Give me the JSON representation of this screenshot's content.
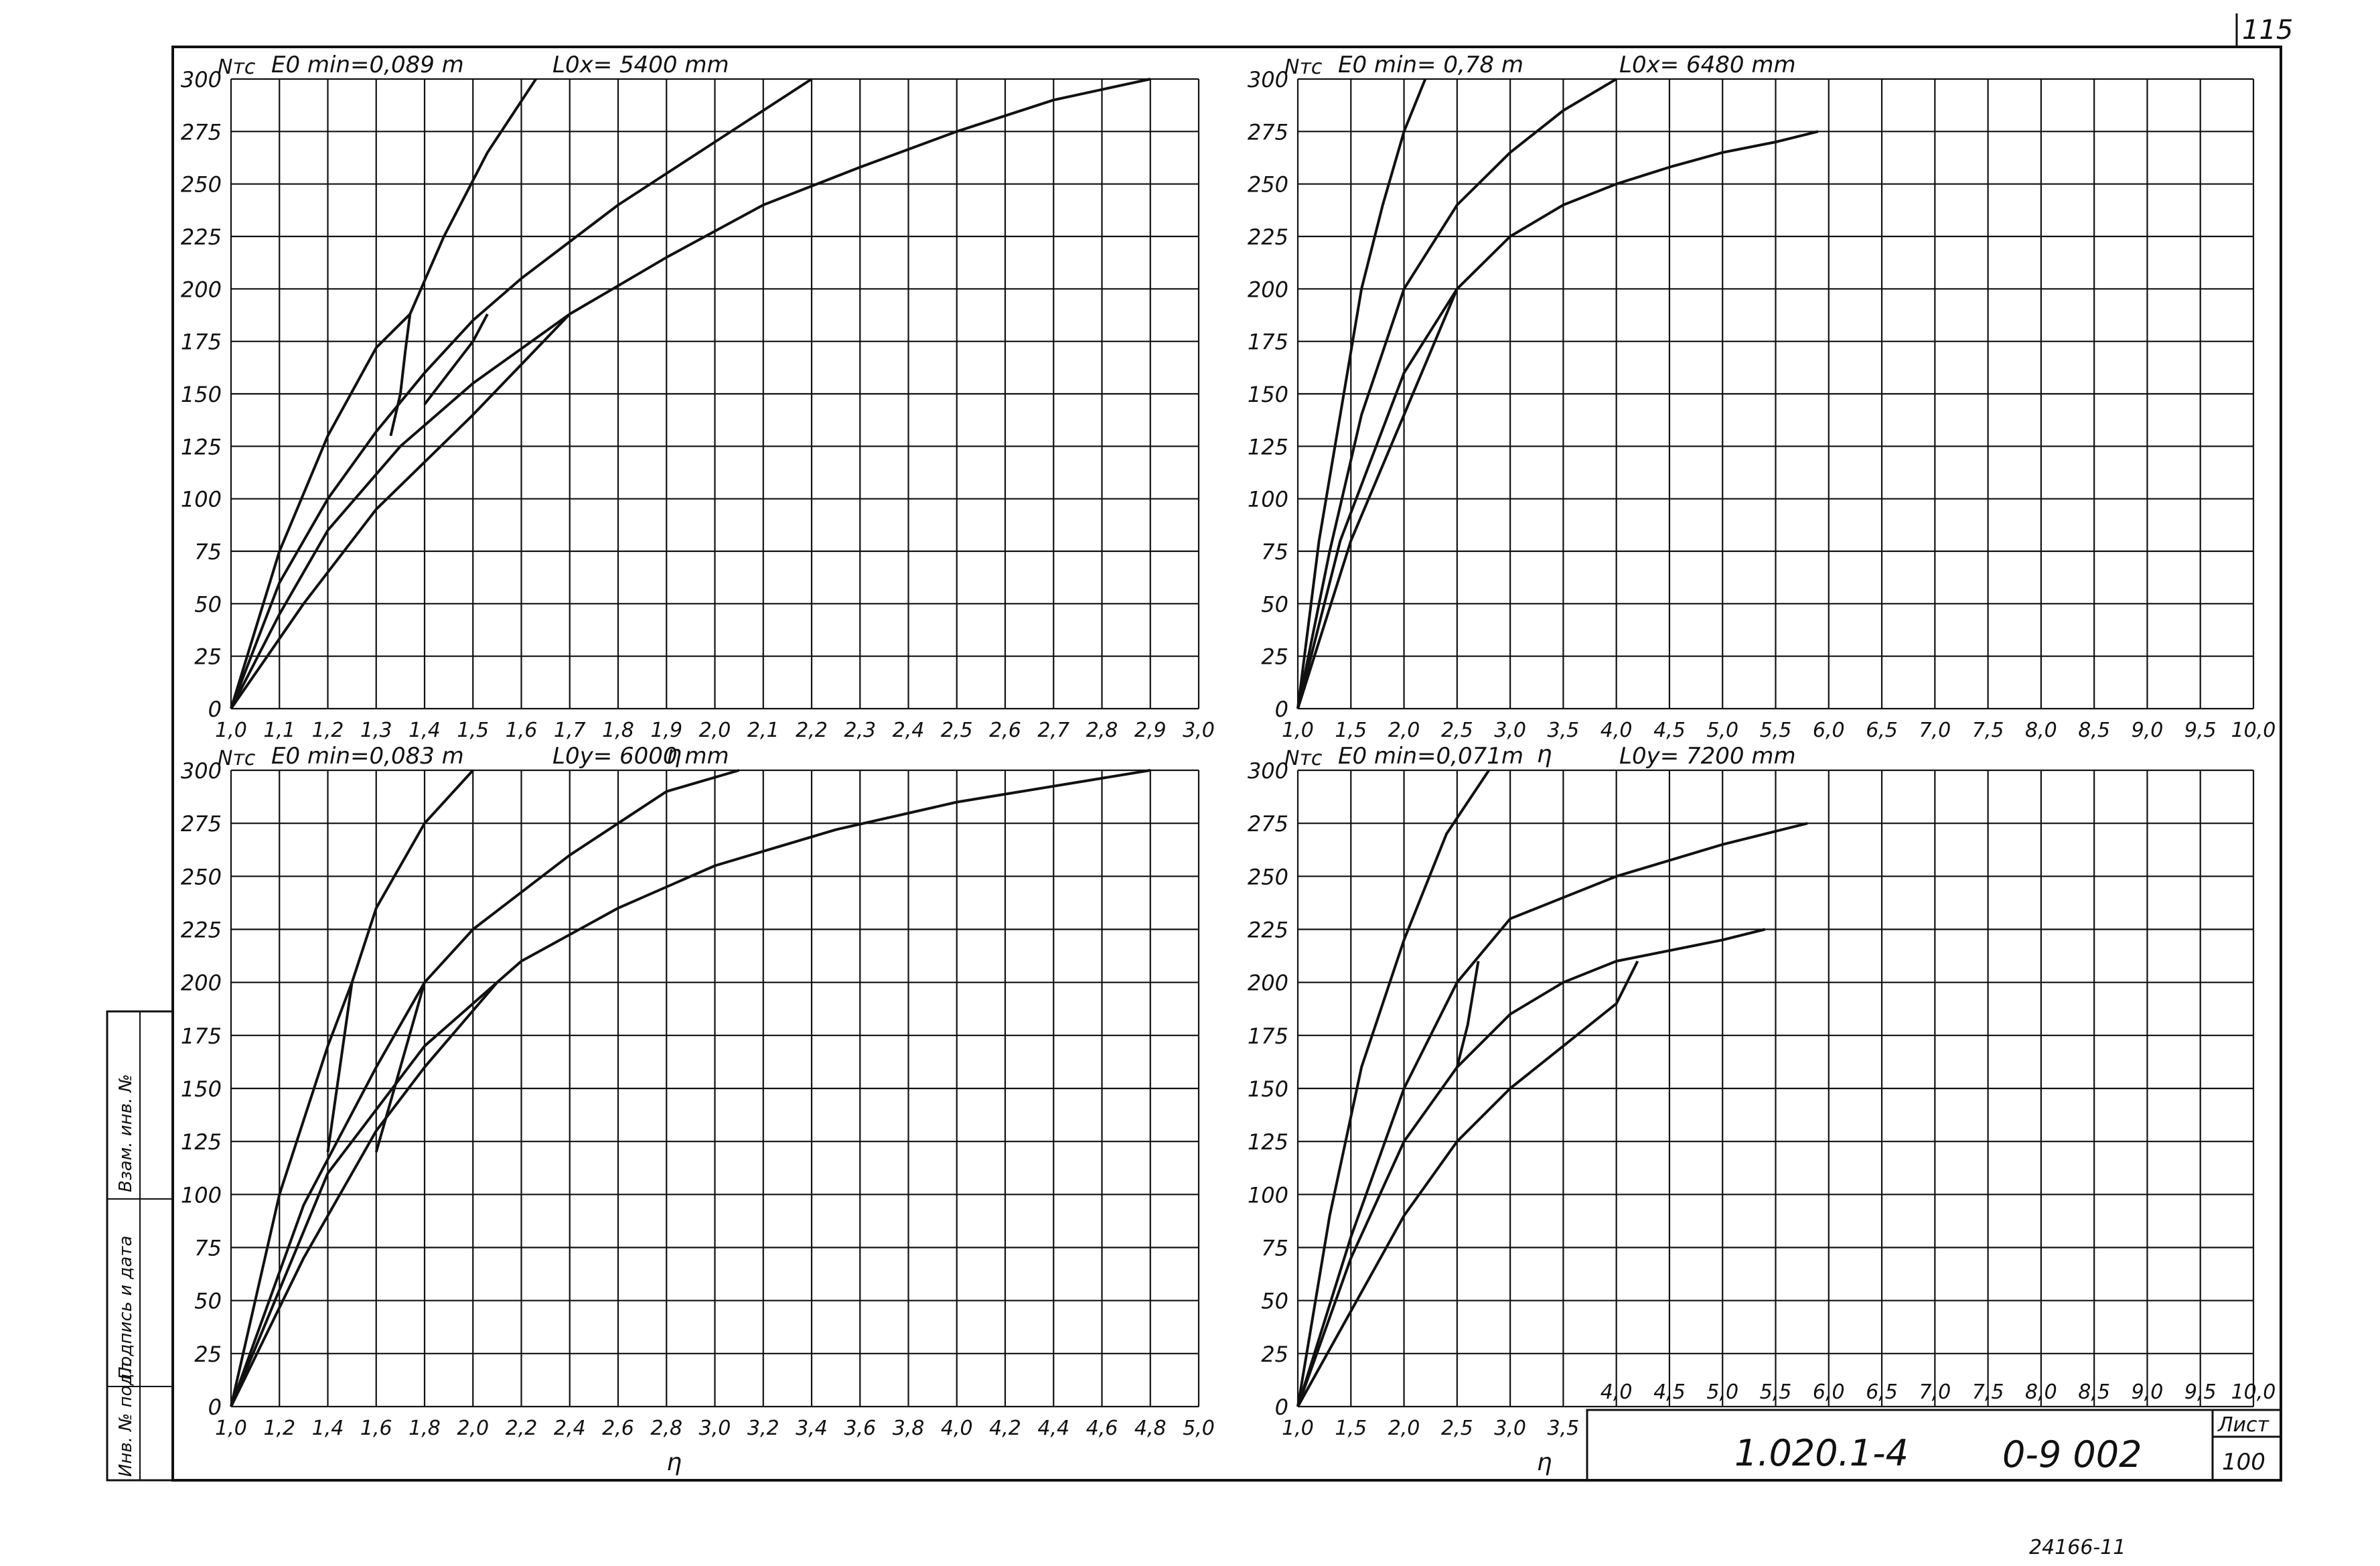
{
  "page": {
    "number": "115",
    "title_block": {
      "code": "1.020.1-4",
      "sheet_code": "0-9 002",
      "sheet_label": "Лист",
      "sheet_number": "100"
    },
    "side_stamp": [
      "Инв. № подл.",
      "Подпись и дата",
      "Взам. инв. №"
    ],
    "footer": "24166-11"
  },
  "chart_data": [
    {
      "type": "line",
      "ylabel": "Nтс",
      "xlabel": "η",
      "note_e": "E0 min=0,089 m",
      "note_l": "L0x= 5400 mm",
      "xlim": [
        1.0,
        3.0
      ],
      "ylim": [
        0,
        300
      ],
      "x_ticks": [
        "1,0",
        "1,1",
        "1,2",
        "1,3",
        "1,4",
        "1,5",
        "1,6",
        "1,7",
        "1,8",
        "1,9",
        "2,0",
        "2,1",
        "2,2",
        "2,3",
        "2,4",
        "2,5",
        "2,6",
        "2,7",
        "2,8",
        "2,9",
        "3,0"
      ],
      "y_ticks": [
        "0",
        "25",
        "50",
        "75",
        "100",
        "125",
        "150",
        "175",
        "200",
        "225",
        "250",
        "275",
        "300"
      ],
      "series": [
        {
          "x": [
            1.0,
            1.1,
            1.2,
            1.3,
            1.37,
            1.44,
            1.53,
            1.63
          ],
          "y": [
            0,
            75,
            130,
            172,
            188,
            225,
            265,
            300
          ]
        },
        {
          "x": [
            1.0,
            1.1,
            1.2,
            1.3,
            1.4,
            1.5,
            1.6,
            1.8,
            2.0,
            2.2
          ],
          "y": [
            0,
            60,
            100,
            132,
            160,
            185,
            205,
            240,
            270,
            300
          ]
        },
        {
          "x": [
            1.0,
            1.1,
            1.2,
            1.35,
            1.5,
            1.7,
            1.9,
            2.1,
            2.3,
            2.5,
            2.7,
            2.9
          ],
          "y": [
            0,
            45,
            85,
            125,
            155,
            188,
            215,
            240,
            258,
            275,
            290,
            300
          ]
        },
        {
          "x": [
            1.0,
            1.15,
            1.3,
            1.5,
            1.7
          ],
          "y": [
            0,
            50,
            95,
            140,
            188
          ]
        },
        {
          "x": [
            1.33,
            1.35,
            1.36,
            1.37
          ],
          "y": [
            130,
            150,
            170,
            188
          ]
        },
        {
          "x": [
            1.4,
            1.45,
            1.5,
            1.53
          ],
          "y": [
            145,
            160,
            175,
            188
          ]
        }
      ]
    },
    {
      "type": "line",
      "ylabel": "Nтс",
      "xlabel": "η",
      "note_e": "E0 min= 0,78 m",
      "note_l": "L0x= 6480 mm",
      "xlim": [
        1.0,
        10.0
      ],
      "ylim": [
        0,
        300
      ],
      "x_ticks": [
        "1,0",
        "1,5",
        "2,0",
        "2,5",
        "3,0",
        "3,5",
        "4,0",
        "4,5",
        "5,0",
        "5,5",
        "6,0",
        "6,5",
        "7,0",
        "7,5",
        "8,0",
        "8,5",
        "9,0",
        "9,5",
        "10,0"
      ],
      "y_ticks": [
        "0",
        "25",
        "50",
        "75",
        "100",
        "125",
        "150",
        "175",
        "200",
        "225",
        "250",
        "275",
        "300"
      ],
      "series": [
        {
          "x": [
            1.0,
            1.2,
            1.4,
            1.6,
            1.8,
            2.0,
            2.2
          ],
          "y": [
            0,
            80,
            140,
            200,
            240,
            275,
            300
          ]
        },
        {
          "x": [
            1.0,
            1.3,
            1.6,
            2.0,
            2.5,
            3.0,
            3.5,
            4.0
          ],
          "y": [
            0,
            75,
            140,
            200,
            240,
            265,
            285,
            300
          ]
        },
        {
          "x": [
            1.0,
            1.4,
            2.0,
            2.5,
            3.0,
            3.5,
            4.0,
            4.5,
            5.0,
            5.5,
            5.9
          ],
          "y": [
            0,
            80,
            160,
            200,
            225,
            240,
            250,
            258,
            265,
            270,
            275
          ]
        },
        {
          "x": [
            1.0,
            1.5,
            2.0,
            2.5
          ],
          "y": [
            0,
            80,
            140,
            200
          ]
        }
      ]
    },
    {
      "type": "line",
      "ylabel": "Nтс",
      "xlabel": "η",
      "note_e": "E0 min=0,083 m",
      "note_l": "L0y= 6000 mm",
      "xlim": [
        1.0,
        5.0
      ],
      "ylim": [
        0,
        300
      ],
      "x_ticks": [
        "1,0",
        "1,2",
        "1,4",
        "1,6",
        "1,8",
        "2,0",
        "2,2",
        "2,4",
        "2,6",
        "2,8",
        "3,0",
        "3,2",
        "3,4",
        "3,6",
        "3,8",
        "4,0",
        "4,2",
        "4,4",
        "4,6",
        "4,8",
        "5,0"
      ],
      "y_ticks": [
        "0",
        "25",
        "50",
        "75",
        "100",
        "125",
        "150",
        "175",
        "200",
        "225",
        "250",
        "275",
        "300"
      ],
      "series": [
        {
          "x": [
            1.0,
            1.2,
            1.4,
            1.5,
            1.6,
            1.8,
            2.0
          ],
          "y": [
            0,
            100,
            170,
            200,
            235,
            275,
            300
          ]
        },
        {
          "x": [
            1.0,
            1.3,
            1.6,
            1.8,
            2.0,
            2.4,
            2.8,
            3.1
          ],
          "y": [
            0,
            95,
            160,
            200,
            225,
            260,
            290,
            300
          ]
        },
        {
          "x": [
            1.0,
            1.4,
            1.8,
            2.2,
            2.6,
            3.0,
            3.5,
            4.0,
            4.8
          ],
          "y": [
            0,
            110,
            170,
            210,
            235,
            255,
            272,
            285,
            300
          ]
        },
        {
          "x": [
            1.0,
            1.3,
            1.6,
            1.8,
            2.1
          ],
          "y": [
            0,
            70,
            130,
            160,
            200
          ]
        },
        {
          "x": [
            1.4,
            1.45,
            1.5
          ],
          "y": [
            120,
            160,
            200
          ]
        },
        {
          "x": [
            1.6,
            1.7,
            1.8
          ],
          "y": [
            120,
            160,
            200
          ]
        }
      ]
    },
    {
      "type": "line",
      "ylabel": "Nтс",
      "xlabel": "η",
      "note_e": "E0 min=0,071m",
      "note_l": "L0y= 7200 mm",
      "xlim": [
        1.0,
        10.0
      ],
      "ylim": [
        0,
        300
      ],
      "x_ticks_lower": [
        "1,0",
        "1,5",
        "2,0",
        "2,5",
        "3,0",
        "3,5"
      ],
      "x_ticks_upper": [
        "4,0",
        "4,5",
        "5,0",
        "5,5",
        "6,0",
        "6,5",
        "7,0",
        "7,5",
        "8,0",
        "8,5",
        "9,0",
        "9,5",
        "10,0"
      ],
      "y_ticks": [
        "0",
        "25",
        "50",
        "75",
        "100",
        "125",
        "150",
        "175",
        "200",
        "225",
        "250",
        "275",
        "300"
      ],
      "series": [
        {
          "x": [
            1.0,
            1.3,
            1.6,
            2.0,
            2.4,
            2.8
          ],
          "y": [
            0,
            90,
            160,
            220,
            270,
            300
          ]
        },
        {
          "x": [
            1.0,
            1.5,
            2.0,
            2.5,
            3.0,
            4.0,
            5.0,
            5.8
          ],
          "y": [
            0,
            80,
            150,
            200,
            230,
            250,
            265,
            275
          ]
        },
        {
          "x": [
            1.0,
            1.5,
            2.0,
            2.5,
            3.0,
            3.5,
            4.0,
            4.5,
            5.0,
            5.4
          ],
          "y": [
            0,
            70,
            125,
            160,
            185,
            200,
            210,
            215,
            220,
            225
          ]
        },
        {
          "x": [
            1.0,
            1.5,
            2.0,
            2.5,
            3.0,
            3.5,
            4.0,
            4.2
          ],
          "y": [
            0,
            45,
            90,
            125,
            150,
            170,
            190,
            210
          ]
        },
        {
          "x": [
            2.5,
            2.6,
            2.7
          ],
          "y": [
            160,
            180,
            210
          ]
        }
      ]
    }
  ]
}
